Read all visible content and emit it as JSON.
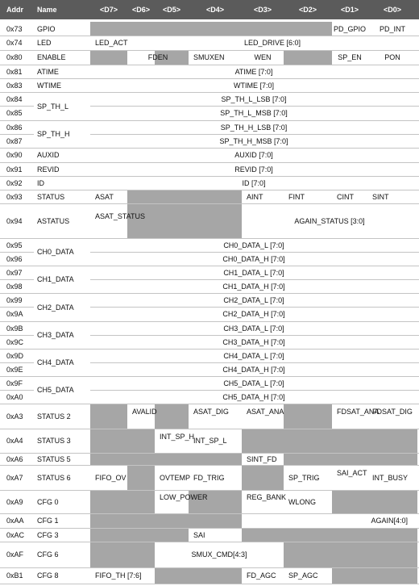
{
  "header": [
    "Addr",
    "Name",
    "<D7>",
    "<D6>",
    "<D5>",
    "<D4>",
    "<D3>",
    "<D2>",
    "<D1>",
    "<D0>"
  ],
  "rows": [
    {
      "addr": "0x73",
      "name": "GPIO",
      "cells": [
        "PD_GPIO",
        "PD_INT"
      ]
    },
    {
      "addr": "0x74",
      "name": "LED",
      "cells": [
        "LED_ACT",
        "LED_DRIVE [6:0]"
      ]
    },
    {
      "addr": "0x80",
      "name": "ENABLE",
      "cells": [
        "FDEN",
        "SMUXEN",
        "WEN",
        "SP_EN",
        "PON"
      ]
    },
    {
      "addr": "0x81",
      "name": "ATIME",
      "cells": [
        "ATIME [7:0]"
      ]
    },
    {
      "addr": "0x83",
      "name": "WTIME",
      "cells": [
        "WTIME [7:0]"
      ]
    },
    {
      "addr": "0x84",
      "name": "",
      "cells": [
        "SP_TH_L_LSB [7:0]"
      ]
    },
    {
      "addr": "0x85",
      "name": "",
      "cells": [
        "SP_TH_L_MSB [7:0]"
      ]
    },
    {
      "addr": "0x86",
      "name": "",
      "cells": [
        "SP_TH_H_LSB [7:0]"
      ]
    },
    {
      "addr": "0x87",
      "name": "",
      "cells": [
        "SP_TH_H_MSB [7:0]"
      ]
    },
    {
      "addr": "0x90",
      "name": "AUXID",
      "cells": [
        "AUXID [7:0]"
      ]
    },
    {
      "addr": "0x91",
      "name": "REVID",
      "cells": [
        "REVID [7:0]"
      ]
    },
    {
      "addr": "0x92",
      "name": "ID",
      "cells": [
        "ID [7:0]"
      ]
    },
    {
      "addr": "0x93",
      "name": "STATUS",
      "cells": [
        "ASAT",
        "AINT",
        "FINT",
        "CINT",
        "SINT"
      ]
    },
    {
      "addr": "0x94",
      "name": "ASTATUS",
      "cells": [
        "ASAT_STATUS",
        "AGAIN_STATUS [3:0]"
      ]
    },
    {
      "addr": "0x95",
      "name": "",
      "cells": [
        "CH0_DATA_L [7:0]"
      ]
    },
    {
      "addr": "0x96",
      "name": "",
      "cells": [
        "CH0_DATA_H [7:0]"
      ]
    },
    {
      "addr": "0x97",
      "name": "",
      "cells": [
        "CH1_DATA_L [7:0]"
      ]
    },
    {
      "addr": "0x98",
      "name": "",
      "cells": [
        "CH1_DATA_H [7:0]"
      ]
    },
    {
      "addr": "0x99",
      "name": "",
      "cells": [
        "CH2_DATA_L [7:0]"
      ]
    },
    {
      "addr": "0x9A",
      "name": "",
      "cells": [
        "CH2_DATA_H [7:0]"
      ]
    },
    {
      "addr": "0x9B",
      "name": "",
      "cells": [
        "CH3_DATA_L [7:0]"
      ]
    },
    {
      "addr": "0x9C",
      "name": "",
      "cells": [
        "CH3_DATA_H [7:0]"
      ]
    },
    {
      "addr": "0x9D",
      "name": "",
      "cells": [
        "CH4_DATA_L [7:0]"
      ]
    },
    {
      "addr": "0x9E",
      "name": "",
      "cells": [
        "CH4_DATA_H [7:0]"
      ]
    },
    {
      "addr": "0x9F",
      "name": "",
      "cells": [
        "CH5_DATA_L [7:0]"
      ]
    },
    {
      "addr": "0xA0",
      "name": "",
      "cells": [
        "CH5_DATA_H [7:0]"
      ]
    },
    {
      "addr": "0xA3",
      "name": "STATUS 2",
      "cells": [
        "AVALID",
        "ASAT_DIG",
        "ASAT_ANA",
        "FDSAT_ANA",
        "FDSAT_DIG"
      ]
    },
    {
      "addr": "0xA4",
      "name": "STATUS 3",
      "cells": [
        "INT_SP_H",
        "INT_SP_L"
      ]
    },
    {
      "addr": "0xA6",
      "name": "STATUS 5",
      "cells": [
        "SINT_FD"
      ]
    },
    {
      "addr": "0xA7",
      "name": "STATUS 6",
      "cells": [
        "FIFO_OV",
        "OVTEMP",
        "FD_TRIG",
        "SP_TRIG",
        "SAI_ACT",
        "INT_BUSY"
      ]
    },
    {
      "addr": "0xA9",
      "name": "CFG 0",
      "cells": [
        "LOW_POWER",
        "REG_BANK",
        "WLONG"
      ]
    },
    {
      "addr": "0xAA",
      "name": "CFG 1",
      "cells": [
        "AGAIN[4:0]"
      ]
    },
    {
      "addr": "0xAC",
      "name": "CFG 3",
      "cells": [
        "SAI"
      ]
    },
    {
      "addr": "0xAF",
      "name": "CFG 6",
      "cells": [
        "SMUX_CMD[4:3]"
      ]
    },
    {
      "addr": "0xB1",
      "name": "CFG 8",
      "cells": [
        "FIFO_TH [7:6]",
        "FD_AGC",
        "SP_AGC"
      ]
    }
  ],
  "groups": [
    "SP_TH_L",
    "SP_TH_H",
    "CH0_DATA",
    "CH1_DATA",
    "CH2_DATA",
    "CH3_DATA",
    "CH4_DATA",
    "CH5_DATA"
  ],
  "colors": {
    "header_bg": "#5b5b5b",
    "header_text": "#ffffff",
    "reserved_bg": "#a6a6a6",
    "row_line": "#c4c4c4",
    "text": "#111111"
  }
}
